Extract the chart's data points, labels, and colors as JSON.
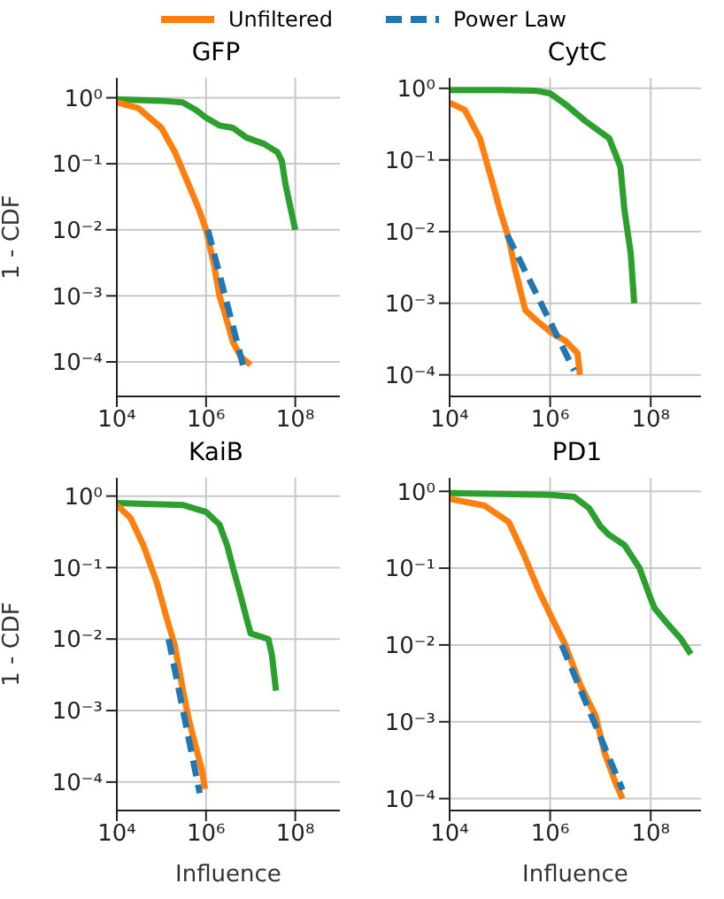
{
  "chart_data": [
    {
      "type": "line",
      "title": "GFP",
      "ylabel": "1 - CDF",
      "log": "xy",
      "grid": true,
      "legend": "top",
      "xlim": [
        10000,
        1000000000
      ],
      "ylim": [
        3e-05,
        2
      ],
      "xticks": [
        {
          "value": 10000,
          "label": "10⁴"
        },
        {
          "value": 1000000,
          "label": "10⁶"
        },
        {
          "value": 100000000,
          "label": "10⁸"
        }
      ],
      "yticks": [
        {
          "value": 0.0001,
          "label": "10⁻⁴"
        },
        {
          "value": 0.001,
          "label": "10⁻³"
        },
        {
          "value": 0.01,
          "label": "10⁻²"
        },
        {
          "value": 0.1,
          "label": "10⁻¹"
        },
        {
          "value": 1,
          "label": "10⁰"
        }
      ],
      "series": [
        {
          "color": "#2ca02c",
          "x": [
            10000,
            100000,
            300000,
            600000,
            1000000,
            2000000,
            4000000,
            8000000,
            20000000,
            40000000,
            50000000,
            60000000,
            80000000,
            100000000
          ],
          "values": [
            0.95,
            0.9,
            0.85,
            0.65,
            0.5,
            0.38,
            0.35,
            0.25,
            0.2,
            0.15,
            0.11,
            0.05,
            0.02,
            0.01
          ]
        },
        {
          "name": "Unfiltered",
          "color": "#ff7f0e",
          "x": [
            10000,
            30000,
            100000,
            200000,
            400000,
            700000,
            1000000,
            1500000,
            2000000,
            3000000,
            4000000,
            6000000,
            10000000
          ],
          "values": [
            0.85,
            0.7,
            0.35,
            0.15,
            0.05,
            0.02,
            0.01,
            0.003,
            0.001,
            0.0004,
            0.0002,
            0.00012,
            9e-05
          ]
        },
        {
          "name": "Power Law",
          "color": "#1f77b4",
          "line_style": "dashed",
          "x": [
            1100000,
            7400000
          ],
          "values": [
            0.01,
            7e-05
          ]
        }
      ]
    },
    {
      "type": "line",
      "title": "CytC",
      "log": "xy",
      "grid": true,
      "xlim": [
        10000,
        1000000000
      ],
      "ylim": [
        5e-05,
        1.4
      ],
      "xticks": [
        {
          "value": 10000,
          "label": "10⁴"
        },
        {
          "value": 1000000,
          "label": "10⁶"
        },
        {
          "value": 100000000,
          "label": "10⁸"
        }
      ],
      "yticks": [
        {
          "value": 0.0001,
          "label": "10⁻⁴"
        },
        {
          "value": 0.001,
          "label": "10⁻³"
        },
        {
          "value": 0.01,
          "label": "10⁻²"
        },
        {
          "value": 0.1,
          "label": "10⁻¹"
        },
        {
          "value": 1,
          "label": "10⁰"
        }
      ],
      "series": [
        {
          "color": "#2ca02c",
          "x": [
            10000,
            100000,
            500000,
            1000000,
            2000000,
            5000000,
            15000000,
            25000000,
            30000000,
            40000000,
            47000000
          ],
          "values": [
            0.95,
            0.95,
            0.93,
            0.85,
            0.6,
            0.35,
            0.2,
            0.08,
            0.02,
            0.005,
            0.001
          ]
        },
        {
          "color": "#ff7f0e",
          "x": [
            10000,
            20000,
            40000,
            70000,
            100000,
            150000,
            200000,
            320000,
            500000,
            1000000,
            2000000,
            3500000,
            3900000
          ],
          "values": [
            0.63,
            0.5,
            0.2,
            0.05,
            0.02,
            0.008,
            0.003,
            0.0008,
            0.0006,
            0.0004,
            0.0003,
            0.0002,
            0.0001
          ]
        },
        {
          "color": "#1f77b4",
          "line_style": "dashed",
          "x": [
            140000,
            3000000
          ],
          "values": [
            0.009,
            0.000115
          ]
        }
      ]
    },
    {
      "type": "line",
      "title": "KaiB",
      "xlabel": "Influence",
      "ylabel": "1 - CDF",
      "log": "xy",
      "grid": true,
      "xlim": [
        10000,
        1000000000
      ],
      "ylim": [
        4e-05,
        1.8
      ],
      "xticks": [
        {
          "value": 10000,
          "label": "10⁴"
        },
        {
          "value": 1000000,
          "label": "10⁶"
        },
        {
          "value": 100000000,
          "label": "10⁸"
        }
      ],
      "yticks": [
        {
          "value": 0.0001,
          "label": "10⁻⁴"
        },
        {
          "value": 0.001,
          "label": "10⁻³"
        },
        {
          "value": 0.01,
          "label": "10⁻²"
        },
        {
          "value": 0.1,
          "label": "10⁻¹"
        },
        {
          "value": 1,
          "label": "10⁰"
        }
      ],
      "series": [
        {
          "color": "#2ca02c",
          "x": [
            10000,
            300000,
            1000000,
            2000000,
            3000000,
            4000000,
            6000000,
            8000000,
            10000000,
            25000000,
            30000000,
            37000000
          ],
          "values": [
            0.8,
            0.75,
            0.6,
            0.4,
            0.2,
            0.1,
            0.04,
            0.02,
            0.012,
            0.01,
            0.006,
            0.0019
          ]
        },
        {
          "color": "#ff7f0e",
          "x": [
            10000,
            20000,
            40000,
            80000,
            130000,
            200000,
            300000,
            400000,
            600000,
            800000,
            950000
          ],
          "values": [
            0.75,
            0.5,
            0.2,
            0.06,
            0.02,
            0.008,
            0.002,
            0.0008,
            0.0003,
            0.00015,
            8e-05
          ]
        },
        {
          "color": "#1f77b4",
          "line_style": "dashed",
          "x": [
            145000,
            720000
          ],
          "values": [
            0.01,
            7e-05
          ]
        }
      ]
    },
    {
      "type": "line",
      "title": "PD1",
      "xlabel": "Influence",
      "log": "xy",
      "grid": true,
      "xlim": [
        10000,
        1000000000
      ],
      "ylim": [
        7e-05,
        1.5
      ],
      "xticks": [
        {
          "value": 10000,
          "label": "10⁴"
        },
        {
          "value": 1000000,
          "label": "10⁶"
        },
        {
          "value": 100000000,
          "label": "10⁸"
        }
      ],
      "yticks": [
        {
          "value": 0.0001,
          "label": "10⁻⁴"
        },
        {
          "value": 0.001,
          "label": "10⁻³"
        },
        {
          "value": 0.01,
          "label": "10⁻²"
        },
        {
          "value": 0.1,
          "label": "10⁻¹"
        },
        {
          "value": 1,
          "label": "10⁰"
        }
      ],
      "series": [
        {
          "color": "#2ca02c",
          "x": [
            10000,
            1000000,
            3000000,
            6000000,
            10000000,
            15000000,
            30000000,
            60000000,
            100000000,
            120000000,
            200000000,
            400000000,
            630000000
          ],
          "values": [
            0.95,
            0.9,
            0.85,
            0.6,
            0.35,
            0.27,
            0.2,
            0.1,
            0.04,
            0.03,
            0.02,
            0.012,
            0.0076
          ]
        },
        {
          "color": "#ff7f0e",
          "x": [
            10000,
            50000,
            150000,
            300000,
            600000,
            1000000,
            2000000,
            4000000,
            8000000,
            12000000,
            20000000,
            27500000
          ],
          "values": [
            0.8,
            0.65,
            0.4,
            0.15,
            0.05,
            0.025,
            0.01,
            0.003,
            0.0012,
            0.0004,
            0.00016,
            0.0001
          ]
        },
        {
          "color": "#1f77b4",
          "line_style": "dashed",
          "x": [
            1700000,
            27500000
          ],
          "values": [
            0.01,
            0.00013
          ]
        }
      ]
    }
  ]
}
